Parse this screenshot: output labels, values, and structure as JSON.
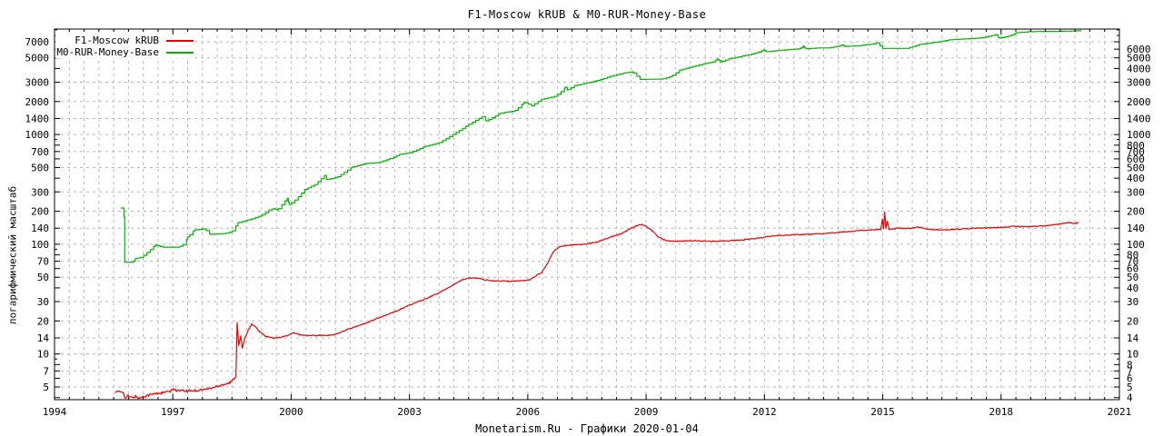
{
  "chart_data": {
    "type": "line",
    "title": "F1-Moscow kRUB & M0-RUR-Money-Base",
    "caption": "Monetarism.Ru - Графики 2020-01-04",
    "ylabel": "логарифмический масштаб",
    "y_scale": "log",
    "xlim": [
      1994,
      2021
    ],
    "ylim": [
      3.83,
      9150
    ],
    "x_ticks_major": [
      1994,
      1997,
      2000,
      2003,
      2006,
      2009,
      2012,
      2015,
      2018,
      2021
    ],
    "x_minor_divisions": 8,
    "y_ticks_left": [
      5,
      7,
      10,
      14,
      20,
      30,
      50,
      70,
      100,
      140,
      200,
      300,
      500,
      700,
      1000,
      1400,
      2000,
      3000,
      5000,
      7000
    ],
    "y_ticks_right": [
      4,
      5,
      6,
      7,
      8,
      10,
      14,
      20,
      30,
      40,
      50,
      60,
      70,
      80,
      100,
      140,
      200,
      300,
      400,
      500,
      600,
      700,
      800,
      1000,
      1400,
      2000,
      3000,
      4000,
      5000,
      6000
    ],
    "y_ticks_minor": [
      9,
      90,
      900,
      8000,
      9000
    ],
    "grid_color": "#b8b8b8",
    "border_color": "#000000",
    "legend_position": "top-left",
    "series": [
      {
        "name": "F1-Moscow kRUB",
        "color": "#ee0000",
        "style": "noisy-line",
        "points": [
          [
            1995.54,
            4.5
          ],
          [
            1995.75,
            4.5
          ],
          [
            1995.79,
            3.9
          ],
          [
            1995.85,
            4.15
          ],
          [
            1995.95,
            4.0
          ],
          [
            1996.05,
            4.1
          ],
          [
            1996.15,
            3.95
          ],
          [
            1996.3,
            4.15
          ],
          [
            1996.5,
            4.3
          ],
          [
            1996.7,
            4.4
          ],
          [
            1996.95,
            4.55
          ],
          [
            1997.02,
            4.85
          ],
          [
            1997.1,
            4.6
          ],
          [
            1997.35,
            4.6
          ],
          [
            1997.6,
            4.65
          ],
          [
            1997.8,
            4.75
          ],
          [
            1998.0,
            4.9
          ],
          [
            1998.2,
            5.2
          ],
          [
            1998.45,
            5.45
          ],
          [
            1998.55,
            5.9
          ],
          [
            1998.6,
            6.2
          ],
          [
            1998.63,
            19.5
          ],
          [
            1998.67,
            12.0
          ],
          [
            1998.72,
            14.5
          ],
          [
            1998.76,
            11.3
          ],
          [
            1998.82,
            13.8
          ],
          [
            1998.9,
            16.2
          ],
          [
            1999.0,
            18.7
          ],
          [
            1999.08,
            17.8
          ],
          [
            1999.2,
            16.0
          ],
          [
            1999.35,
            14.5
          ],
          [
            1999.55,
            13.9
          ],
          [
            1999.75,
            14.2
          ],
          [
            1999.95,
            14.9
          ],
          [
            2000.05,
            15.6
          ],
          [
            2000.2,
            15.0
          ],
          [
            2000.45,
            14.7
          ],
          [
            2000.7,
            14.8
          ],
          [
            2000.95,
            14.7
          ],
          [
            2001.15,
            15.2
          ],
          [
            2001.4,
            16.6
          ],
          [
            2001.6,
            17.5
          ],
          [
            2001.85,
            18.8
          ],
          [
            2002.1,
            20.5
          ],
          [
            2002.35,
            22.2
          ],
          [
            2002.6,
            24.0
          ],
          [
            2002.8,
            25.8
          ],
          [
            2003.0,
            27.8
          ],
          [
            2003.2,
            30.0
          ],
          [
            2003.35,
            31.0
          ],
          [
            2003.55,
            33.5
          ],
          [
            2003.75,
            36.0
          ],
          [
            2003.95,
            39.5
          ],
          [
            2004.15,
            43.5
          ],
          [
            2004.35,
            47.5
          ],
          [
            2004.55,
            49.3
          ],
          [
            2004.75,
            48.8
          ],
          [
            2004.95,
            47.0
          ],
          [
            2005.2,
            46.2
          ],
          [
            2005.5,
            46.0
          ],
          [
            2005.8,
            46.4
          ],
          [
            2006.05,
            47.2
          ],
          [
            2006.2,
            51.5
          ],
          [
            2006.35,
            55.0
          ],
          [
            2006.5,
            67.0
          ],
          [
            2006.65,
            85.0
          ],
          [
            2006.8,
            95.0
          ],
          [
            2006.95,
            97.5
          ],
          [
            2007.15,
            98.5
          ],
          [
            2007.35,
            99.5
          ],
          [
            2007.55,
            101.5
          ],
          [
            2007.75,
            105.0
          ],
          [
            2007.95,
            111.0
          ],
          [
            2008.15,
            118.0
          ],
          [
            2008.35,
            124.0
          ],
          [
            2008.5,
            132.0
          ],
          [
            2008.65,
            142.0
          ],
          [
            2008.8,
            149.5
          ],
          [
            2008.9,
            151.0
          ],
          [
            2009.0,
            147.0
          ],
          [
            2009.15,
            133.0
          ],
          [
            2009.3,
            118.0
          ],
          [
            2009.45,
            110.0
          ],
          [
            2009.6,
            107.0
          ],
          [
            2009.8,
            106.0
          ],
          [
            2010.0,
            107.0
          ],
          [
            2010.25,
            108.0
          ],
          [
            2010.5,
            106.5
          ],
          [
            2010.75,
            106.5
          ],
          [
            2011.0,
            107.5
          ],
          [
            2011.25,
            108.5
          ],
          [
            2011.5,
            110.0
          ],
          [
            2011.75,
            112.5
          ],
          [
            2012.0,
            116.0
          ],
          [
            2012.2,
            119.0
          ],
          [
            2012.45,
            120.5
          ],
          [
            2012.7,
            122.0
          ],
          [
            2013.0,
            123.0
          ],
          [
            2013.3,
            123.5
          ],
          [
            2013.6,
            126.0
          ],
          [
            2013.9,
            128.5
          ],
          [
            2014.2,
            131.0
          ],
          [
            2014.5,
            133.5
          ],
          [
            2014.75,
            135.0
          ],
          [
            2014.95,
            137.0
          ],
          [
            2014.99,
            168.0
          ],
          [
            2015.02,
            140.0
          ],
          [
            2015.05,
            196.0
          ],
          [
            2015.08,
            139.0
          ],
          [
            2015.12,
            163.0
          ],
          [
            2015.16,
            137.0
          ],
          [
            2015.25,
            138.0
          ],
          [
            2015.4,
            140.5
          ],
          [
            2015.55,
            139.0
          ],
          [
            2015.7,
            140.0
          ],
          [
            2015.9,
            143.0
          ],
          [
            2016.05,
            139.5
          ],
          [
            2016.2,
            137.0
          ],
          [
            2016.4,
            135.5
          ],
          [
            2016.6,
            135.0
          ],
          [
            2016.8,
            136.5
          ],
          [
            2017.0,
            138.0
          ],
          [
            2017.25,
            139.5
          ],
          [
            2017.5,
            140.5
          ],
          [
            2017.75,
            141.5
          ],
          [
            2018.0,
            142.5
          ],
          [
            2018.2,
            144.0
          ],
          [
            2018.35,
            146.0
          ],
          [
            2018.5,
            144.0
          ],
          [
            2018.7,
            144.5
          ],
          [
            2018.9,
            145.5
          ],
          [
            2019.1,
            147.0
          ],
          [
            2019.3,
            149.5
          ],
          [
            2019.5,
            153.0
          ],
          [
            2019.65,
            156.5
          ],
          [
            2019.75,
            157.5
          ],
          [
            2019.82,
            153.5
          ],
          [
            2019.9,
            155.5
          ],
          [
            2019.97,
            157.0
          ]
        ]
      },
      {
        "name": "M0-RUR-Money-Base",
        "color": "#00b400",
        "style": "steps",
        "points": [
          [
            1995.68,
            214
          ],
          [
            1995.76,
            212
          ],
          [
            1995.78,
            68.5
          ],
          [
            1996.0,
            69
          ],
          [
            1996.05,
            74
          ],
          [
            1996.2,
            76
          ],
          [
            1996.35,
            84
          ],
          [
            1996.55,
            98
          ],
          [
            1996.75,
            94
          ],
          [
            1997.1,
            94
          ],
          [
            1997.25,
            97
          ],
          [
            1997.38,
            117
          ],
          [
            1997.55,
            135
          ],
          [
            1997.8,
            138
          ],
          [
            1997.95,
            123
          ],
          [
            1998.3,
            125
          ],
          [
            1998.5,
            130
          ],
          [
            1998.65,
            157
          ],
          [
            1998.9,
            166
          ],
          [
            1999.2,
            180
          ],
          [
            1999.45,
            205
          ],
          [
            1999.55,
            211
          ],
          [
            1999.65,
            205
          ],
          [
            1999.9,
            262
          ],
          [
            1999.95,
            230
          ],
          [
            2000.1,
            253
          ],
          [
            2000.35,
            316
          ],
          [
            2000.6,
            350
          ],
          [
            2000.85,
            423
          ],
          [
            2000.9,
            390
          ],
          [
            2001.15,
            405
          ],
          [
            2001.55,
            506
          ],
          [
            2001.9,
            545
          ],
          [
            2002.2,
            555
          ],
          [
            2002.5,
            600
          ],
          [
            2002.75,
            660
          ],
          [
            2003.0,
            680
          ],
          [
            2003.4,
            780
          ],
          [
            2003.75,
            840
          ],
          [
            2004.1,
            1000
          ],
          [
            2004.5,
            1235
          ],
          [
            2004.85,
            1460
          ],
          [
            2004.95,
            1330
          ],
          [
            2005.3,
            1560
          ],
          [
            2005.7,
            1660
          ],
          [
            2005.9,
            1970
          ],
          [
            2006.1,
            1830
          ],
          [
            2006.35,
            2100
          ],
          [
            2006.7,
            2230
          ],
          [
            2006.85,
            2460
          ],
          [
            2006.95,
            2700
          ],
          [
            2007.0,
            2550
          ],
          [
            2007.2,
            2800
          ],
          [
            2007.5,
            2950
          ],
          [
            2007.75,
            3100
          ],
          [
            2008.1,
            3400
          ],
          [
            2008.45,
            3650
          ],
          [
            2008.65,
            3725
          ],
          [
            2008.85,
            3180
          ],
          [
            2009.4,
            3200
          ],
          [
            2009.65,
            3400
          ],
          [
            2009.85,
            3870
          ],
          [
            2010.1,
            4100
          ],
          [
            2010.45,
            4400
          ],
          [
            2010.7,
            4600
          ],
          [
            2010.8,
            4870
          ],
          [
            2010.9,
            4600
          ],
          [
            2011.1,
            4900
          ],
          [
            2011.45,
            5200
          ],
          [
            2011.8,
            5550
          ],
          [
            2011.98,
            5900
          ],
          [
            2012.05,
            5700
          ],
          [
            2012.3,
            5800
          ],
          [
            2012.6,
            5950
          ],
          [
            2012.9,
            6050
          ],
          [
            2012.98,
            6400
          ],
          [
            2013.05,
            6050
          ],
          [
            2013.35,
            6150
          ],
          [
            2013.6,
            6150
          ],
          [
            2013.9,
            6400
          ],
          [
            2013.97,
            6550
          ],
          [
            2014.05,
            6350
          ],
          [
            2014.35,
            6450
          ],
          [
            2014.7,
            6650
          ],
          [
            2014.85,
            6850
          ],
          [
            2015.0,
            6100
          ],
          [
            2015.6,
            6100
          ],
          [
            2015.95,
            6650
          ],
          [
            2016.3,
            6900
          ],
          [
            2016.7,
            7300
          ],
          [
            2017.1,
            7450
          ],
          [
            2017.5,
            7600
          ],
          [
            2017.85,
            8100
          ],
          [
            2017.95,
            7570
          ],
          [
            2018.2,
            7900
          ],
          [
            2018.4,
            8500
          ],
          [
            2018.7,
            8650
          ],
          [
            2019.0,
            8700
          ],
          [
            2019.3,
            8700
          ],
          [
            2019.6,
            8750
          ],
          [
            2019.9,
            8800
          ],
          [
            2020.03,
            8900
          ]
        ]
      }
    ]
  }
}
